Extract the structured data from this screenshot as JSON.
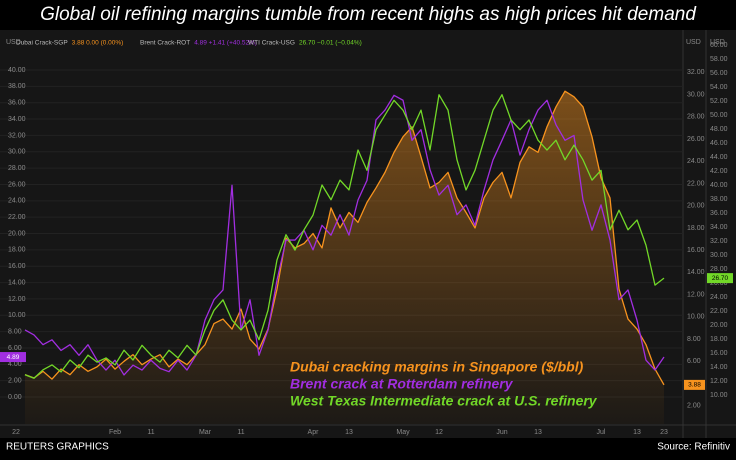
{
  "chart_data": {
    "type": "line",
    "title": "Global oil refining margins tumble from recent highs as high prices hit demand",
    "y_unit": "USD",
    "footer_left": "REUTERS GRAPHICS",
    "footer_right": "Source: Refinitiv",
    "grid": true,
    "categories": [
      "22",
      null,
      null,
      null,
      null,
      null,
      null,
      null,
      null,
      null,
      null,
      "Feb",
      null,
      null,
      null,
      "11",
      null,
      null,
      null,
      null,
      null,
      "Mar",
      null,
      null,
      null,
      "11",
      null,
      null,
      null,
      null,
      null,
      null,
      null,
      "Apr",
      null,
      null,
      null,
      "13",
      null,
      null,
      null,
      null,
      null,
      "May",
      null,
      null,
      null,
      "12",
      null,
      null,
      null,
      null,
      null,
      null,
      "Jun",
      null,
      null,
      null,
      "13",
      null,
      null,
      null,
      null,
      null,
      null,
      "Jul",
      null,
      null,
      null,
      "13",
      null,
      null,
      "23"
    ],
    "ylim": [
      -3.3,
      44.16
    ],
    "y2lim": [
      0.36,
      35.27
    ],
    "y3lim": [
      5.86,
      61.29
    ],
    "yticks": [
      {
        "value": 0,
        "label": "0.00"
      },
      {
        "value": 2,
        "label": "2.00"
      },
      {
        "value": 4,
        "label": "4.00"
      },
      {
        "value": 6,
        "label": "6.00"
      },
      {
        "value": 8,
        "label": "8.00"
      },
      {
        "value": 10,
        "label": "10.00"
      },
      {
        "value": 12,
        "label": "12.00"
      },
      {
        "value": 14,
        "label": "14.00"
      },
      {
        "value": 16,
        "label": "16.00"
      },
      {
        "value": 18,
        "label": "18.00"
      },
      {
        "value": 20,
        "label": "20.00"
      },
      {
        "value": 22,
        "label": "22.00"
      },
      {
        "value": 24,
        "label": "24.00"
      },
      {
        "value": 26,
        "label": "26.00"
      },
      {
        "value": 28,
        "label": "28.00"
      },
      {
        "value": 30,
        "label": "30.00"
      },
      {
        "value": 32,
        "label": "32.00"
      },
      {
        "value": 34,
        "label": "34.00"
      },
      {
        "value": 36,
        "label": "36.00"
      },
      {
        "value": 38,
        "label": "38.00"
      },
      {
        "value": 40,
        "label": "40.00"
      }
    ],
    "y2ticks": [
      {
        "value": 2,
        "label": "2.00"
      },
      {
        "value": 4,
        "label": "4.00"
      },
      {
        "value": 6,
        "label": "6.00"
      },
      {
        "value": 8,
        "label": "8.00"
      },
      {
        "value": 10,
        "label": "10.00"
      },
      {
        "value": 12,
        "label": "12.00"
      },
      {
        "value": 14,
        "label": "14.00"
      },
      {
        "value": 16,
        "label": "16.00"
      },
      {
        "value": 18,
        "label": "18.00"
      },
      {
        "value": 20,
        "label": "20.00"
      },
      {
        "value": 22,
        "label": "22.00"
      },
      {
        "value": 24,
        "label": "24.00"
      },
      {
        "value": 26,
        "label": "26.00"
      },
      {
        "value": 28,
        "label": "28.00"
      },
      {
        "value": 30,
        "label": "30.00"
      },
      {
        "value": 32,
        "label": "32.00"
      }
    ],
    "y3ticks": [
      {
        "value": 10,
        "label": "10.00"
      },
      {
        "value": 12,
        "label": "12.00"
      },
      {
        "value": 14,
        "label": "14.00"
      },
      {
        "value": 16,
        "label": "16.00"
      },
      {
        "value": 18,
        "label": "18.00"
      },
      {
        "value": 20,
        "label": "20.00"
      },
      {
        "value": 22,
        "label": "22.00"
      },
      {
        "value": 24,
        "label": "24.00"
      },
      {
        "value": 26,
        "label": "26.00"
      },
      {
        "value": 28,
        "label": "28.00"
      },
      {
        "value": 30,
        "label": "30.00"
      },
      {
        "value": 32,
        "label": "32.00"
      },
      {
        "value": 34,
        "label": "34.00"
      },
      {
        "value": 36,
        "label": "36.00"
      },
      {
        "value": 38,
        "label": "38.00"
      },
      {
        "value": 40,
        "label": "40.00"
      },
      {
        "value": 42,
        "label": "42.00"
      },
      {
        "value": 44,
        "label": "44.00"
      },
      {
        "value": 46,
        "label": "46.00"
      },
      {
        "value": 48,
        "label": "48.00"
      },
      {
        "value": 50,
        "label": "50.00"
      },
      {
        "value": 52,
        "label": "52.00"
      },
      {
        "value": 54,
        "label": "54.00"
      },
      {
        "value": 56,
        "label": "56.00"
      },
      {
        "value": 58,
        "label": "58.00"
      },
      {
        "value": 60,
        "label": "60.00"
      }
    ],
    "series": [
      {
        "name": "Dubai Crack-SGP",
        "header_values": "3.88 0.00 (0.00%)",
        "annotation": "Dubai cracking margins in Singapore ($/bbl)",
        "tag": "3.88",
        "color": "#f7931e",
        "axis": "y2",
        "area": true,
        "values": [
          null,
          4.8,
          4.5,
          5.1,
          4.4,
          5.3,
          4.8,
          5.7,
          5.1,
          5.5,
          6.2,
          5.3,
          6.0,
          6.6,
          5.7,
          6.2,
          6.6,
          5.5,
          6.2,
          5.7,
          6.6,
          7.5,
          9.4,
          9.8,
          8.9,
          10.7,
          8.0,
          7.1,
          8.9,
          12.5,
          17.1,
          16.2,
          16.6,
          17.5,
          16.2,
          19.8,
          18.0,
          19.4,
          18.5,
          20.3,
          21.6,
          23.0,
          24.8,
          26.2,
          27.1,
          24.4,
          21.6,
          22.1,
          23.0,
          20.7,
          19.4,
          18.0,
          20.7,
          22.1,
          23.0,
          20.7,
          23.9,
          25.3,
          24.8,
          27.1,
          28.9,
          30.3,
          29.8,
          28.9,
          26.2,
          22.5,
          20.7,
          12.5,
          9.8,
          8.9,
          7.5,
          5.3,
          3.88
        ]
      },
      {
        "name": "Brent Crack-ROT",
        "header_values": "4.89 +1.41 (+40.52%)",
        "annotation": "Brent crack at Rotterdam refinery",
        "tag": "4.89",
        "color": "#a12ee0",
        "axis": "y",
        "area": false,
        "values": [
          null,
          8.2,
          7.6,
          6.4,
          7.0,
          5.7,
          6.4,
          5.1,
          6.4,
          4.5,
          3.3,
          4.5,
          2.7,
          3.9,
          3.3,
          4.5,
          3.5,
          3.1,
          4.5,
          3.3,
          5.1,
          9.4,
          11.9,
          13.1,
          25.9,
          8.2,
          11.9,
          5.1,
          8.2,
          14.3,
          19.2,
          19.2,
          20.4,
          18.0,
          21.0,
          19.8,
          22.3,
          19.8,
          24.1,
          26.5,
          33.9,
          35.1,
          36.9,
          36.3,
          31.4,
          32.7,
          27.8,
          24.7,
          25.9,
          22.3,
          23.5,
          21.0,
          25.3,
          29.0,
          31.4,
          33.9,
          29.6,
          32.7,
          35.1,
          36.3,
          33.3,
          31.4,
          32.0,
          24.1,
          20.4,
          23.5,
          19.2,
          11.9,
          13.1,
          9.4,
          4.5,
          3.3,
          4.89
        ]
      },
      {
        "name": "WTI Crack-USG",
        "header_values": "26.70 −0.01 (−0.04%)",
        "annotation": "West Texas Intermediate crack at U.S. refinery",
        "tag": "26.70",
        "color": "#72d828",
        "axis": "y3",
        "area": false,
        "values": [
          null,
          12.9,
          12.4,
          13.6,
          14.3,
          13.3,
          15.0,
          13.9,
          15.7,
          14.7,
          15.3,
          14.3,
          16.4,
          15.0,
          17.1,
          15.7,
          14.7,
          16.4,
          15.3,
          17.1,
          15.7,
          19.3,
          22.1,
          23.6,
          20.7,
          19.3,
          20.7,
          17.9,
          22.1,
          29.3,
          32.9,
          30.7,
          33.6,
          35.7,
          40.0,
          37.9,
          40.7,
          39.3,
          45.0,
          42.1,
          47.9,
          50.0,
          52.1,
          50.7,
          47.9,
          50.7,
          45.0,
          52.9,
          50.7,
          43.6,
          39.3,
          42.1,
          46.4,
          50.7,
          52.9,
          49.3,
          47.9,
          49.3,
          46.4,
          45.0,
          46.4,
          43.6,
          45.7,
          43.6,
          40.7,
          42.1,
          33.6,
          36.4,
          33.6,
          35.0,
          31.4,
          25.7,
          26.7
        ]
      }
    ]
  }
}
